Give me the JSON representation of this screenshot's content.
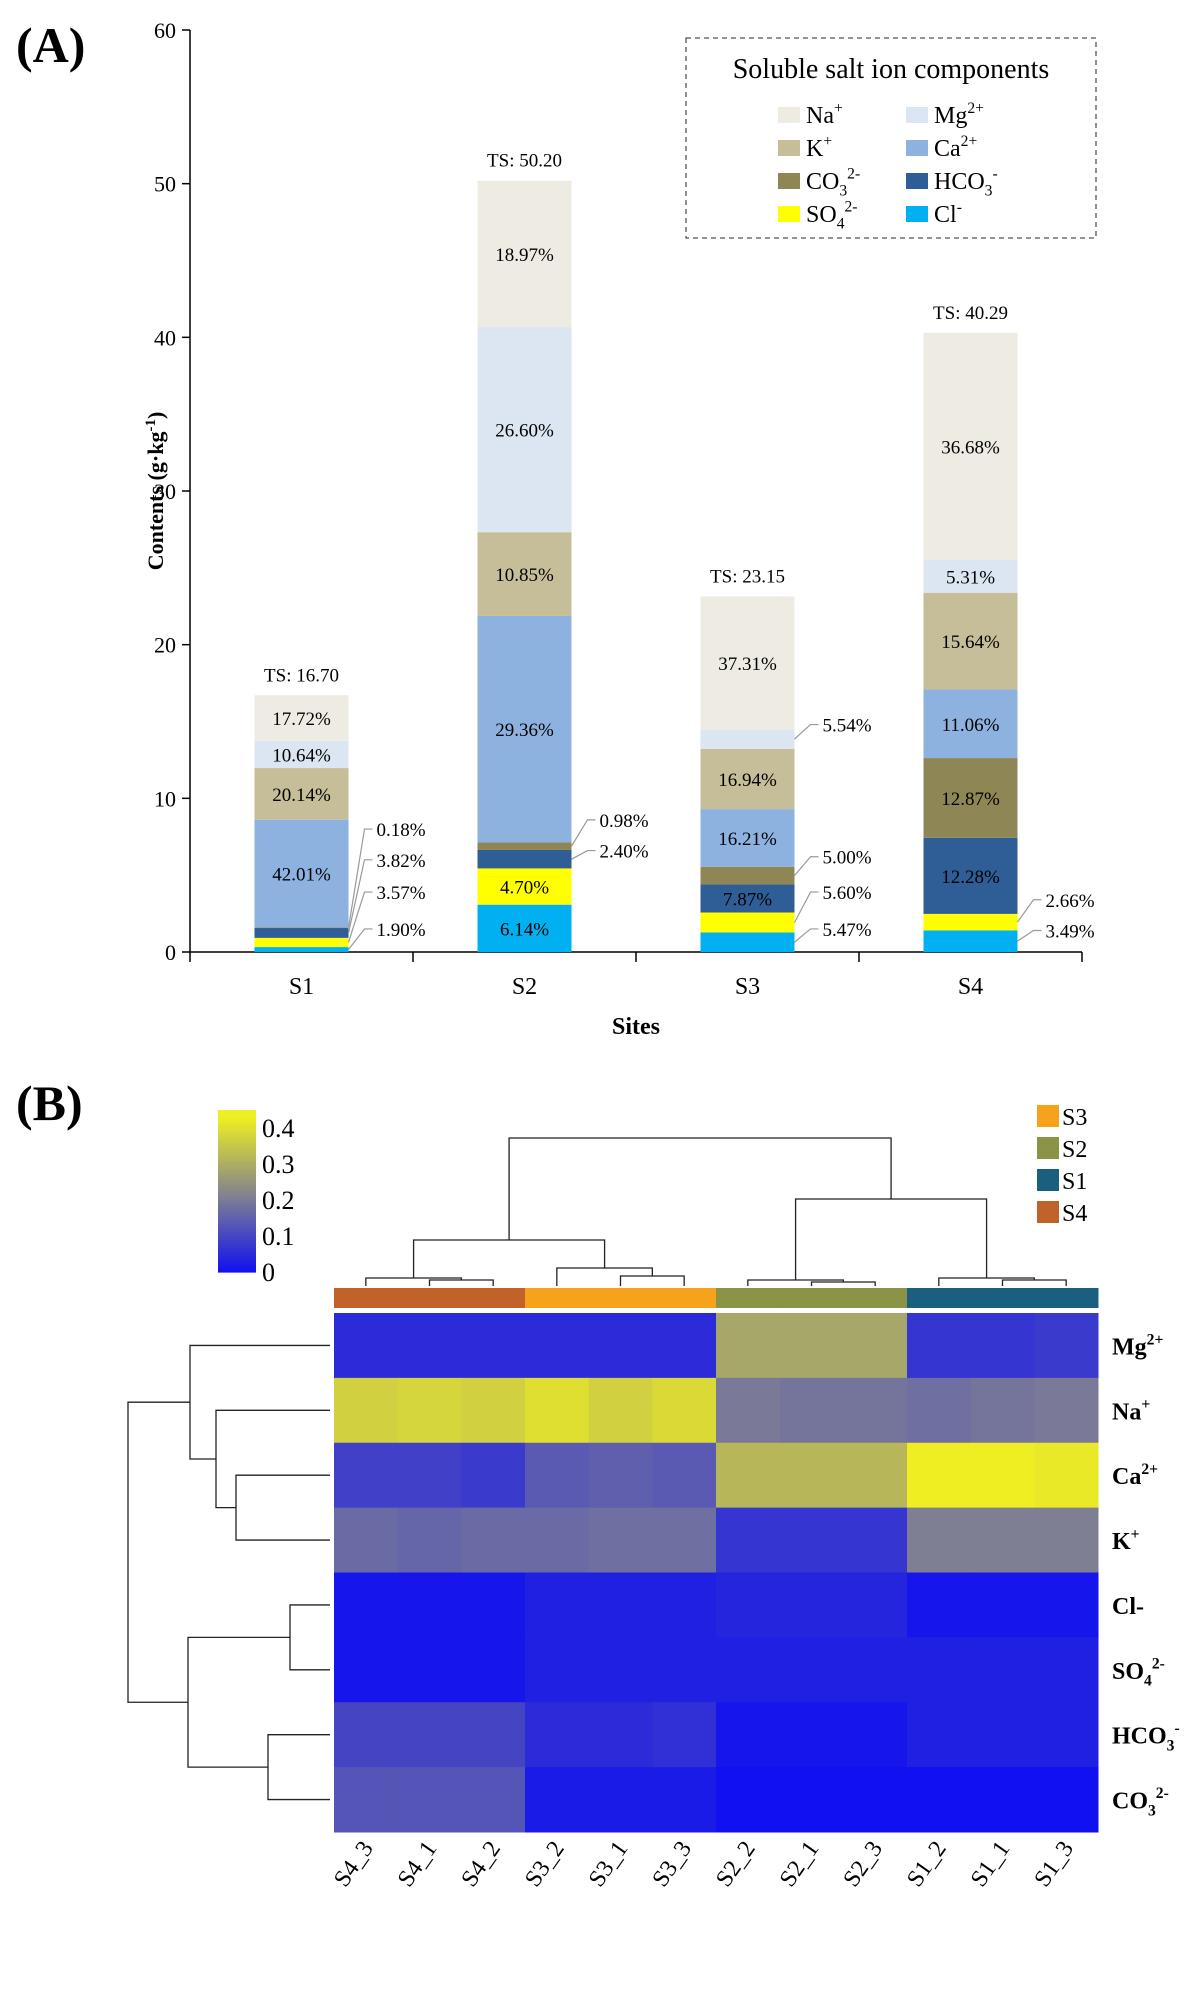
{
  "chart_data": [
    {
      "panel": "(A)",
      "type": "bar",
      "stacked": true,
      "xlabel": "Sites",
      "ylabel": "Contents (g·kg",
      "ylabel_sup": "-1",
      "ylabel_close": ")",
      "ylim": [
        0,
        60
      ],
      "yticks": [
        "0",
        "10",
        "20",
        "30",
        "40",
        "50",
        "60"
      ],
      "categories": [
        "S1",
        "S2",
        "S3",
        "S4"
      ],
      "totals": [
        16.7,
        50.2,
        23.15,
        40.29
      ],
      "total_labels": [
        "TS: 16.70",
        "TS: 50.20",
        "TS: 23.15",
        "TS: 40.29"
      ],
      "legend": {
        "title": "Soluble salt ion components",
        "placement": "top-right"
      },
      "series": [
        {
          "name": "Cl",
          "sup": "-",
          "color": "#00B0F0",
          "values": [
            0.32,
            3.08,
            1.27,
            1.41
          ],
          "labels": [
            "1.90%",
            "6.14%",
            "5.47%",
            "3.49%"
          ]
        },
        {
          "name": "SO4",
          "sub": "4",
          "sup": "2-",
          "color": "#FFFF00",
          "values": [
            0.6,
            2.36,
            1.3,
            1.07
          ],
          "labels": [
            "3.57%",
            "4.70%",
            "5.60%",
            "2.66%"
          ]
        },
        {
          "name": "HCO3",
          "sub": "3",
          "sup": "-",
          "color": "#2F5D95",
          "values": [
            0.64,
            1.2,
            1.82,
            4.95
          ],
          "labels": [
            "3.82%",
            "2.40%",
            "7.87%",
            "12.28%"
          ]
        },
        {
          "name": "CO3",
          "sub": "3",
          "sup": "2-",
          "color": "#8F8655",
          "values": [
            0.03,
            0.49,
            1.16,
            5.19
          ],
          "labels": [
            "0.18%",
            "0.98%",
            "5.00%",
            "12.87%"
          ]
        },
        {
          "name": "Ca",
          "sup": "2+",
          "color": "#8EB2E0",
          "values": [
            7.02,
            14.74,
            3.75,
            4.46
          ],
          "labels": [
            "42.01%",
            "29.36%",
            "16.21%",
            "11.06%"
          ]
        },
        {
          "name": "K",
          "sup": "+",
          "color": "#C6BE98",
          "values": [
            3.36,
            5.45,
            3.92,
            6.3
          ],
          "labels": [
            "20.14%",
            "10.85%",
            "16.94%",
            "15.64%"
          ]
        },
        {
          "name": "Mg",
          "sup": "2+",
          "color": "#DCE6F2",
          "values": [
            1.78,
            13.35,
            1.28,
            2.14
          ],
          "labels": [
            "10.64%",
            "26.60%",
            "5.54%",
            "5.31%"
          ]
        },
        {
          "name": "Na",
          "sup": "+",
          "color": "#EEECE2",
          "values": [
            2.96,
            9.52,
            8.64,
            14.78
          ],
          "labels": [
            "17.72%",
            "18.97%",
            "37.31%",
            "36.68%"
          ]
        }
      ]
    },
    {
      "panel": "(B)",
      "type": "heatmap",
      "colorbar": {
        "min": 0,
        "max": 0.45,
        "ticks": [
          "0",
          "0.1",
          "0.2",
          "0.3",
          "0.4"
        ],
        "ticks_values": [
          0,
          0.1,
          0.2,
          0.3,
          0.4
        ],
        "colors": [
          "#1010F0",
          "#7A7A98",
          "#EEEE22"
        ]
      },
      "columns": [
        "S4_3",
        "S4_1",
        "S4_2",
        "S3_2",
        "S3_1",
        "S3_3",
        "S2_2",
        "S2_1",
        "S2_3",
        "S1_2",
        "S1_1",
        "S1_3"
      ],
      "column_groups": [
        "S4",
        "S4",
        "S4",
        "S3",
        "S3",
        "S3",
        "S2",
        "S2",
        "S2",
        "S1",
        "S1",
        "S1"
      ],
      "group_legend": [
        {
          "name": "S3",
          "color": "#F7A21B"
        },
        {
          "name": "S2",
          "color": "#8A9346"
        },
        {
          "name": "S1",
          "color": "#1B5F80"
        },
        {
          "name": "S4",
          "color": "#C0622A"
        }
      ],
      "rows": [
        {
          "base": "Mg",
          "sub": "",
          "sup": "2+"
        },
        {
          "base": "Na",
          "sub": "",
          "sup": "+"
        },
        {
          "base": "Ca",
          "sub": "",
          "sup": "2+"
        },
        {
          "base": "K",
          "sub": "",
          "sup": "+"
        },
        {
          "base": "Cl-",
          "sub": "",
          "sup": ""
        },
        {
          "base": "SO",
          "sub": "4",
          "sup": "2-"
        },
        {
          "base": "HCO",
          "sub": "3",
          "sup": "-"
        },
        {
          "base": "CO",
          "sub": "3",
          "sup": "2-"
        }
      ],
      "values": [
        [
          0.05,
          0.05,
          0.05,
          0.05,
          0.05,
          0.05,
          0.29,
          0.29,
          0.29,
          0.07,
          0.07,
          0.08
        ],
        [
          0.37,
          0.38,
          0.37,
          0.4,
          0.37,
          0.39,
          0.2,
          0.19,
          0.19,
          0.18,
          0.19,
          0.2
        ],
        [
          0.09,
          0.09,
          0.08,
          0.14,
          0.15,
          0.14,
          0.32,
          0.32,
          0.32,
          0.43,
          0.43,
          0.42
        ],
        [
          0.17,
          0.16,
          0.17,
          0.17,
          0.18,
          0.18,
          0.07,
          0.07,
          0.07,
          0.21,
          0.21,
          0.21
        ],
        [
          0.01,
          0.01,
          0.01,
          0.03,
          0.03,
          0.03,
          0.04,
          0.04,
          0.04,
          0.01,
          0.01,
          0.01
        ],
        [
          0.01,
          0.01,
          0.01,
          0.03,
          0.03,
          0.03,
          0.03,
          0.03,
          0.03,
          0.03,
          0.03,
          0.03
        ],
        [
          0.1,
          0.1,
          0.1,
          0.05,
          0.05,
          0.06,
          0.01,
          0.01,
          0.01,
          0.03,
          0.03,
          0.03
        ],
        [
          0.13,
          0.13,
          0.13,
          0.02,
          0.02,
          0.02,
          0.0,
          0.0,
          0.0,
          0.0,
          0.0,
          0.0
        ]
      ]
    }
  ]
}
